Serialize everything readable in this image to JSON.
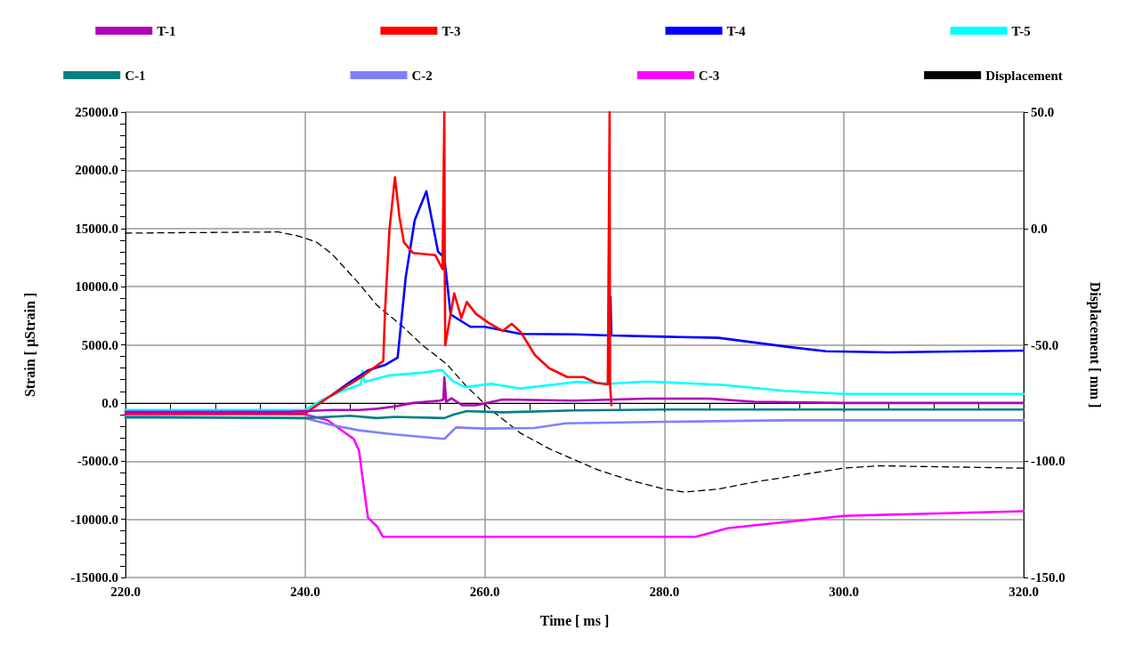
{
  "chart_data": {
    "type": "line",
    "xlabel": "Time [ ms ]",
    "ylabel": "Strain [ µStrain ]",
    "y2label": "Displacement [ mm ]",
    "xlim": [
      220,
      320
    ],
    "xticks": [
      {
        "value": 220,
        "label": "220.0"
      },
      {
        "value": 240,
        "label": "240.0"
      },
      {
        "value": 260,
        "label": "260.0"
      },
      {
        "value": 280,
        "label": "280.0"
      },
      {
        "value": 300,
        "label": "300.0"
      },
      {
        "value": 320,
        "label": "320.0"
      }
    ],
    "ylim": [
      -15000,
      25000
    ],
    "yticks": [
      {
        "value": -15000,
        "label": "-15000.0"
      },
      {
        "value": -10000,
        "label": "-10000.0"
      },
      {
        "value": -5000,
        "label": "-5000.0"
      },
      {
        "value": 0,
        "label": "0.0"
      },
      {
        "value": 5000,
        "label": "5000.0"
      },
      {
        "value": 10000,
        "label": "10000.0"
      },
      {
        "value": 15000,
        "label": "15000.0"
      },
      {
        "value": 20000,
        "label": "20000.0"
      },
      {
        "value": 25000,
        "label": "25000.0"
      }
    ],
    "y2lim": [
      -150,
      50
    ],
    "y2ticks": [
      {
        "value": -150,
        "label": "-150.0"
      },
      {
        "value": -100,
        "label": "-100.0"
      },
      {
        "value": -50,
        "label": "-50.0"
      },
      {
        "value": 0,
        "label": "0.0"
      },
      {
        "value": 50,
        "label": "50.0"
      }
    ],
    "grid": true,
    "legend": "top",
    "marker": "none",
    "series": [
      {
        "name": "T-1",
        "color": "#b000b8",
        "x": [
          220,
          238,
          240,
          243,
          246,
          248,
          250,
          252,
          255,
          255.4,
          255.5,
          255.7,
          256.3,
          257.5,
          259,
          262,
          270,
          278,
          285,
          290,
          300,
          320
        ],
        "values": [
          -750,
          -750,
          -700,
          -600,
          -600,
          -500,
          -300,
          0,
          200,
          300,
          2200,
          100,
          400,
          -200,
          -200,
          300,
          200,
          370,
          370,
          100,
          0,
          0
        ]
      },
      {
        "name": "T-3",
        "color": "#ff0000",
        "x": [
          220,
          240,
          242.8,
          246,
          248.7,
          248.9,
          249.4,
          250,
          250.5,
          251,
          252,
          254.5,
          255.3,
          255.5,
          255.55,
          255.6,
          256.6,
          257.4,
          258,
          259,
          260.4,
          262,
          263,
          264,
          265.6,
          267.2,
          269.2,
          271,
          272.4,
          273.7,
          273.9,
          273.95,
          274.1
        ],
        "values": [
          -900,
          -900,
          600,
          2100,
          3600,
          8000,
          15000,
          19400,
          16000,
          13800,
          12900,
          12700,
          11500,
          25000,
          11000,
          4970,
          9420,
          7300,
          8680,
          7670,
          6900,
          6200,
          6800,
          6100,
          4100,
          2970,
          2230,
          2230,
          1730,
          1600,
          25000,
          1600,
          -200
        ]
      },
      {
        "name": "T-4",
        "color": "#0000ff",
        "x": [
          243,
          245,
          247,
          249,
          250.3,
          251.2,
          252.2,
          253.5,
          254.8,
          255.5,
          256.2,
          258.4,
          260,
          264,
          270,
          273.9,
          274,
          274.1,
          280,
          286,
          290,
          294,
          298,
          305,
          320
        ],
        "values": [
          700,
          1800,
          2800,
          3300,
          3900,
          10800,
          15700,
          18200,
          13000,
          12500,
          7600,
          6550,
          6550,
          5940,
          5900,
          5800,
          9100,
          5800,
          5700,
          5600,
          5200,
          4800,
          4450,
          4350,
          4500
        ]
      },
      {
        "name": "T-5",
        "color": "#00ffff",
        "x": [
          220,
          240,
          242,
          244,
          246.2,
          246.4,
          246.6,
          249.3,
          253,
          255.2,
          256.5,
          257.8,
          260.7,
          264,
          270.4,
          273.9,
          278,
          286.4,
          293.4,
          300,
          320
        ],
        "values": [
          -600,
          -600,
          300,
          1000,
          1600,
          2750,
          1800,
          2370,
          2600,
          2840,
          1850,
          1360,
          1650,
          1240,
          1820,
          1650,
          1850,
          1560,
          1040,
          770,
          770
        ]
      },
      {
        "name": "C-1",
        "color": "#008080",
        "x": [
          220,
          240,
          245,
          248,
          250,
          255.5,
          256.5,
          258,
          262,
          270,
          280,
          320
        ],
        "values": [
          -1240,
          -1300,
          -1100,
          -1300,
          -1200,
          -1300,
          -1000,
          -700,
          -800,
          -640,
          -560,
          -560
        ]
      },
      {
        "name": "C-2",
        "color": "#8080ff",
        "x": [
          220,
          240,
          243,
          246,
          250,
          255.5,
          256.8,
          260,
          265.5,
          269,
          280,
          293.4,
          320
        ],
        "values": [
          -1160,
          -1300,
          -1900,
          -2350,
          -2700,
          -3090,
          -2100,
          -2200,
          -2150,
          -1750,
          -1620,
          -1490,
          -1490
        ]
      },
      {
        "name": "C-3",
        "color": "#ff00ff",
        "x": [
          220,
          239.9,
          242.5,
          245.4,
          246,
          246.5,
          247,
          248,
          248.65,
          283.5,
          287.1,
          300,
          320
        ],
        "values": [
          -970,
          -970,
          -1480,
          -3090,
          -4080,
          -7050,
          -9870,
          -10600,
          -11500,
          -11500,
          -10760,
          -9700,
          -9300
        ]
      },
      {
        "name": "Displacement",
        "color": "#000000",
        "axis": "y2",
        "line_style": "dashed",
        "x": [
          220,
          237,
          239,
          241.2,
          243,
          246,
          248,
          250.9,
          253,
          255.8,
          258,
          260.7,
          264,
          267.2,
          272.5,
          276,
          280,
          282.2,
          286,
          290,
          295,
          300,
          303.9,
          320
        ],
        "values": [
          -2,
          -1.5,
          -3,
          -5.7,
          -11,
          -23.7,
          -33,
          -42.3,
          -50,
          -58.4,
          -68,
          -78,
          -88,
          -94.7,
          -103.6,
          -108,
          -112,
          -113.3,
          -112,
          -109,
          -106,
          -103,
          -102,
          -103
        ]
      }
    ]
  }
}
